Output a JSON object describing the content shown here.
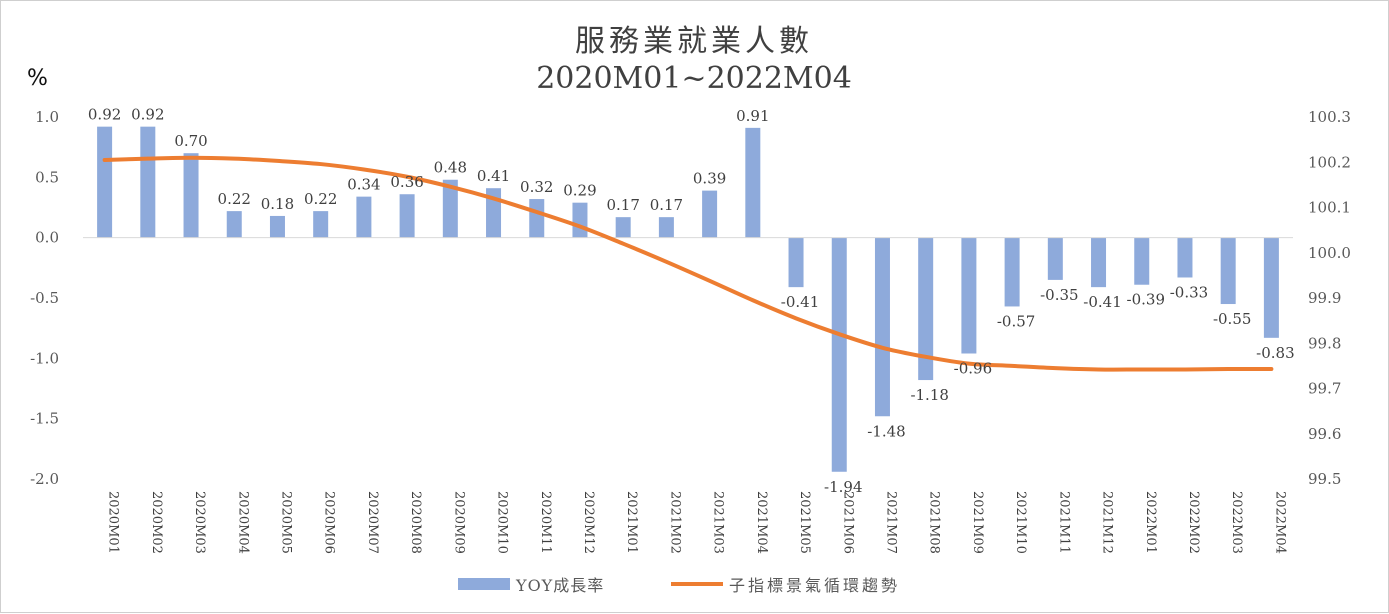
{
  "chart_data": {
    "type": "bar",
    "title": "服務業就業人數",
    "subtitle": "2020M01~2022M04",
    "ylabel": "%",
    "categories": [
      "2020M01",
      "2020M02",
      "2020M03",
      "2020M04",
      "2020M05",
      "2020M06",
      "2020M07",
      "2020M08",
      "2020M09",
      "2020M10",
      "2020M11",
      "2020M12",
      "2021M01",
      "2021M02",
      "2021M03",
      "2021M04",
      "2021M05",
      "2021M06",
      "2021M07",
      "2021M08",
      "2021M09",
      "2021M10",
      "2021M11",
      "2021M12",
      "2022M01",
      "2022M02",
      "2022M03",
      "2022M04"
    ],
    "ylim": [
      -2.0,
      1.0
    ],
    "yticks": [
      "1.0",
      "0.5",
      "0.0",
      "-0.5",
      "-1.0",
      "-1.5",
      "-2.0"
    ],
    "y2lim": [
      99.5,
      100.3
    ],
    "y2ticks": [
      "100.3",
      "100.2",
      "100.1",
      "100.0",
      "99.9",
      "99.8",
      "99.7",
      "99.6",
      "99.5"
    ],
    "series": [
      {
        "name": "YOY成長率",
        "type": "bar",
        "axis": "left",
        "color": "#8eaadb",
        "values": [
          0.92,
          0.92,
          0.7,
          0.22,
          0.18,
          0.22,
          0.34,
          0.36,
          0.48,
          0.41,
          0.32,
          0.29,
          0.17,
          0.17,
          0.39,
          0.91,
          -0.41,
          -1.94,
          -1.48,
          -1.18,
          -0.96,
          -0.57,
          -0.35,
          -0.41,
          -0.39,
          -0.33,
          -0.55,
          -0.83
        ],
        "labels": [
          "0.92",
          "0.92",
          "0.70",
          "0.22",
          "0.18",
          "0.22",
          "0.34",
          "0.36",
          "0.48",
          "0.41",
          "0.32",
          "0.29",
          "0.17",
          "0.17",
          "0.39",
          "0.91",
          "-0.41",
          "-1.94",
          "-1.48",
          "-1.18",
          "-0.96",
          "-0.57",
          "-0.35",
          "-0.41",
          "-0.39",
          "-0.33",
          "-0.55",
          "-0.83"
        ]
      },
      {
        "name": "子指標景氣循環趨勢",
        "type": "line",
        "axis": "right",
        "color": "#ed7d31",
        "values": [
          100.205,
          100.208,
          100.21,
          100.208,
          100.203,
          100.196,
          100.184,
          100.168,
          100.146,
          100.12,
          100.09,
          100.058,
          100.02,
          99.98,
          99.938,
          99.895,
          99.855,
          99.82,
          99.79,
          99.77,
          99.755,
          99.75,
          99.745,
          99.742,
          99.742,
          99.742,
          99.743,
          99.743
        ]
      }
    ],
    "legend_position": "bottom",
    "grid": false
  }
}
